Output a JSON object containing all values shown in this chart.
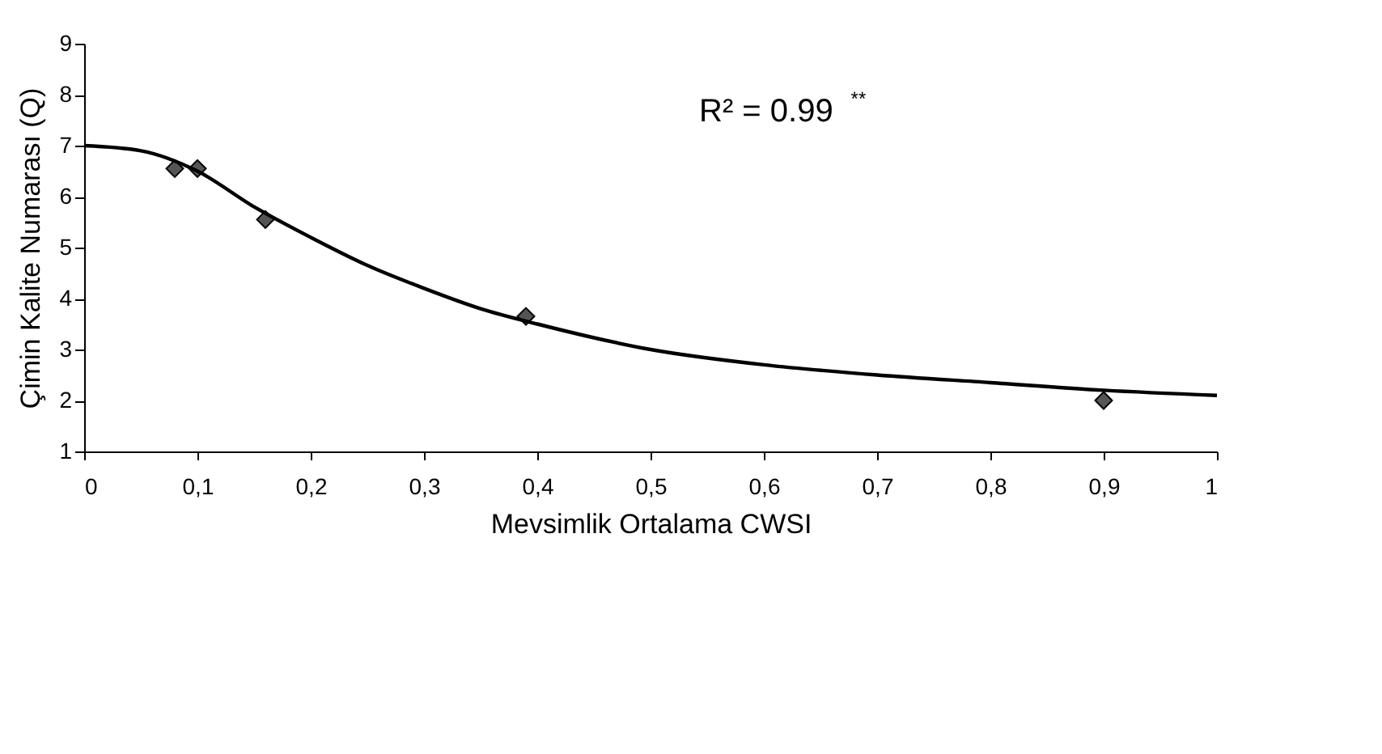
{
  "chart_data": {
    "type": "scatter",
    "xlabel": "Mevsimlik Ortalama CWSI",
    "ylabel": "Çimin Kalite Numarası (Q)",
    "xlim": [
      0,
      1
    ],
    "ylim": [
      1,
      9
    ],
    "xticks": [
      0,
      {
        "value": 0.1,
        "label": "0,1"
      },
      {
        "value": 0.2,
        "label": "0,2"
      },
      {
        "value": 0.3,
        "label": "0,3"
      },
      {
        "value": 0.4,
        "label": "0,4"
      },
      {
        "value": 0.5,
        "label": "0,5"
      },
      {
        "value": 0.6,
        "label": "0,6"
      },
      {
        "value": 0.7,
        "label": "0,7"
      },
      {
        "value": 0.8,
        "label": "0,8"
      },
      {
        "value": 0.9,
        "label": "0,9"
      },
      1
    ],
    "yticks": [
      1,
      2,
      3,
      4,
      5,
      6,
      7,
      8,
      9
    ],
    "grid": false,
    "marker": "diamond",
    "series": [
      {
        "color": "#555555",
        "x": [
          0.08,
          0.1,
          0.16,
          0.39,
          0.9
        ],
        "values": [
          6.55,
          6.55,
          5.55,
          3.65,
          2.0
        ]
      },
      {
        "type": "line",
        "color": "#000000",
        "line_style": "solid",
        "marker": "none",
        "x": [
          0,
          0.05,
          0.1,
          0.15,
          0.2,
          0.25,
          0.3,
          0.35,
          0.4,
          0.5,
          0.6,
          0.7,
          0.8,
          0.9,
          1.0
        ],
        "values": [
          7.0,
          6.9,
          6.5,
          5.8,
          5.2,
          4.65,
          4.2,
          3.8,
          3.5,
          3.0,
          2.7,
          2.5,
          2.35,
          2.2,
          2.1
        ]
      }
    ],
    "annotations": [
      "R² = 0.99$^{**}$"
    ]
  }
}
